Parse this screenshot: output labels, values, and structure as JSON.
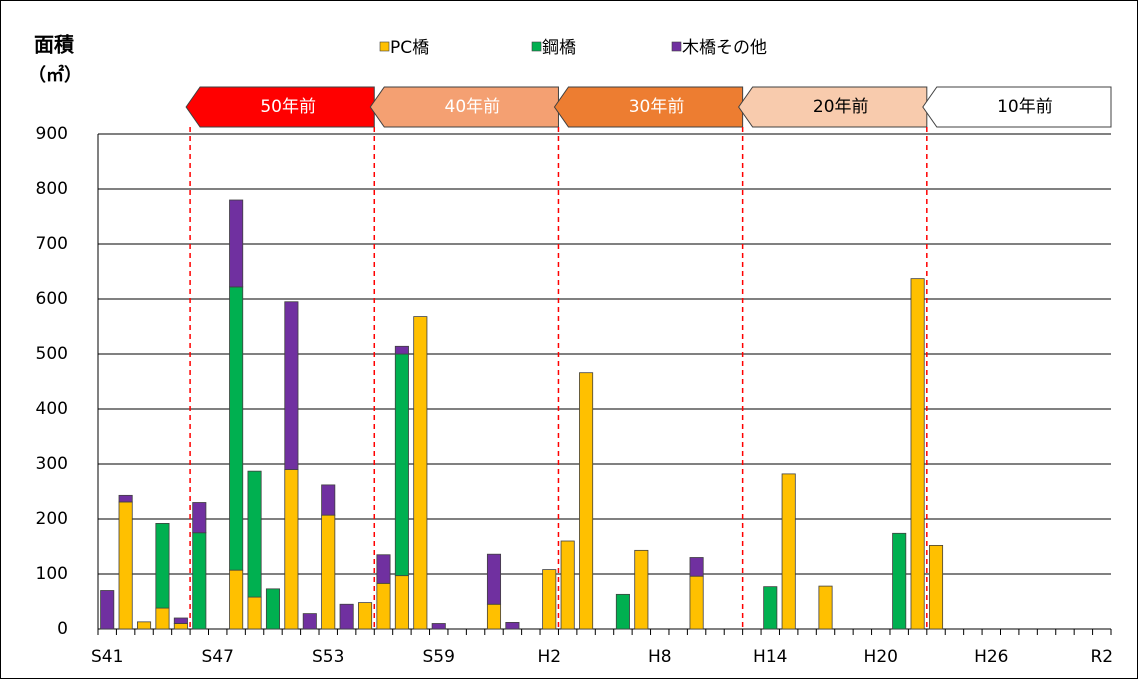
{
  "chart_data": {
    "type": "stacked_bar",
    "y_label": "面積",
    "y_unit": "（㎡）",
    "categories": [
      "S41",
      null,
      null,
      null,
      null,
      null,
      "S47",
      null,
      null,
      null,
      null,
      null,
      "S53",
      null,
      null,
      null,
      null,
      null,
      "S59",
      null,
      null,
      null,
      null,
      null,
      "H2",
      null,
      null,
      null,
      null,
      null,
      "H8",
      null,
      null,
      null,
      null,
      null,
      "H14",
      null,
      null,
      null,
      null,
      null,
      "H20",
      null,
      null,
      null,
      null,
      null,
      "H26",
      null,
      null,
      null,
      null,
      null,
      "R2"
    ],
    "series": [
      {
        "name": "PC橋",
        "color": "#ffc000",
        "values": [
          0,
          231,
          13,
          38,
          10,
          0,
          0,
          107,
          58,
          0,
          290,
          0,
          207,
          0,
          48,
          83,
          97,
          568,
          0,
          0,
          0,
          45,
          0,
          0,
          108,
          160,
          466,
          0,
          0,
          143,
          0,
          0,
          96,
          0,
          0,
          0,
          0,
          282,
          0,
          78,
          0,
          0,
          0,
          0,
          637,
          152,
          0,
          0,
          0,
          0,
          0,
          0,
          0,
          0,
          0
        ]
      },
      {
        "name": "鋼橋",
        "color": "#00b050",
        "values": [
          0,
          0,
          0,
          154,
          0,
          175,
          0,
          515,
          229,
          73,
          0,
          0,
          0,
          0,
          0,
          0,
          403,
          0,
          0,
          0,
          0,
          0,
          0,
          0,
          0,
          0,
          0,
          0,
          63,
          0,
          0,
          0,
          0,
          0,
          0,
          0,
          77,
          0,
          0,
          0,
          0,
          0,
          0,
          174,
          0,
          0,
          0,
          0,
          0,
          0,
          0,
          0,
          0,
          0,
          0
        ]
      },
      {
        "name": "木橋その他",
        "color": "#7030a0",
        "values": [
          70,
          12,
          0,
          0,
          10,
          55,
          0,
          158,
          0,
          0,
          305,
          28,
          55,
          45,
          0,
          52,
          14,
          0,
          10,
          0,
          0,
          91,
          12,
          0,
          0,
          0,
          0,
          0,
          0,
          0,
          0,
          0,
          34,
          0,
          0,
          0,
          0,
          0,
          0,
          0,
          0,
          0,
          0,
          0,
          0,
          0,
          0,
          0,
          0,
          0,
          0,
          0,
          0,
          0,
          0
        ]
      }
    ],
    "ylim": [
      0,
      900
    ],
    "yticks": [
      0,
      100,
      200,
      300,
      400,
      500,
      600,
      700,
      800,
      900
    ],
    "grid": true,
    "periods": [
      {
        "label": "50年前",
        "color": "#ff0000",
        "text_color": "#ffffff"
      },
      {
        "label": "40年前",
        "color": "#f4a072",
        "text_color": "#ffffff"
      },
      {
        "label": "30年前",
        "color": "#ed7d31",
        "text_color": "#ffffff"
      },
      {
        "label": "20年前",
        "color": "#f8cbad",
        "text_color": "#000000"
      },
      {
        "label": "10年前",
        "color": "#ffffff",
        "text_color": "#000000"
      }
    ]
  }
}
